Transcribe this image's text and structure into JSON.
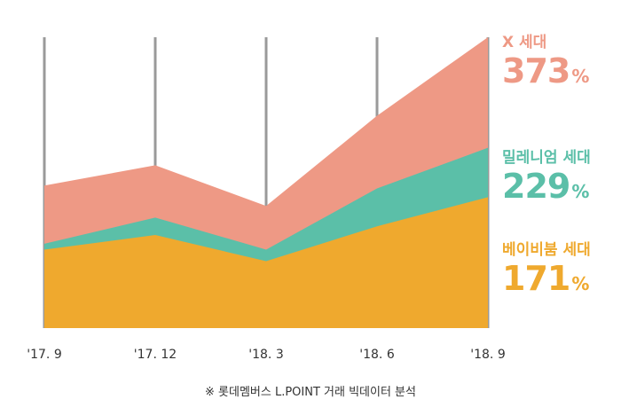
{
  "chart_data": {
    "type": "area",
    "stacked": false,
    "categories": [
      "'17. 9",
      "'17. 12",
      "'18. 3",
      "'18. 6",
      "'18. 9"
    ],
    "ylim": [
      0,
      100
    ],
    "grid_x": true,
    "series": [
      {
        "name": "X 세대",
        "values": [
          49,
          56,
          42,
          73,
          100
        ],
        "color": "#EE9985",
        "growth": "373",
        "unit": "%"
      },
      {
        "name": "밀레니엄 세대",
        "values": [
          29,
          38,
          27,
          48,
          62
        ],
        "color": "#5BBFA8",
        "growth": "229",
        "unit": "%"
      },
      {
        "name": "베이비붐 세대",
        "values": [
          27,
          32,
          23,
          35,
          45
        ],
        "color": "#EFA92E",
        "growth": "171",
        "unit": "%"
      }
    ],
    "legend_position": "right",
    "source": "※ 롯데멤버스 L.POINT 거래 빅데이터 분석"
  }
}
